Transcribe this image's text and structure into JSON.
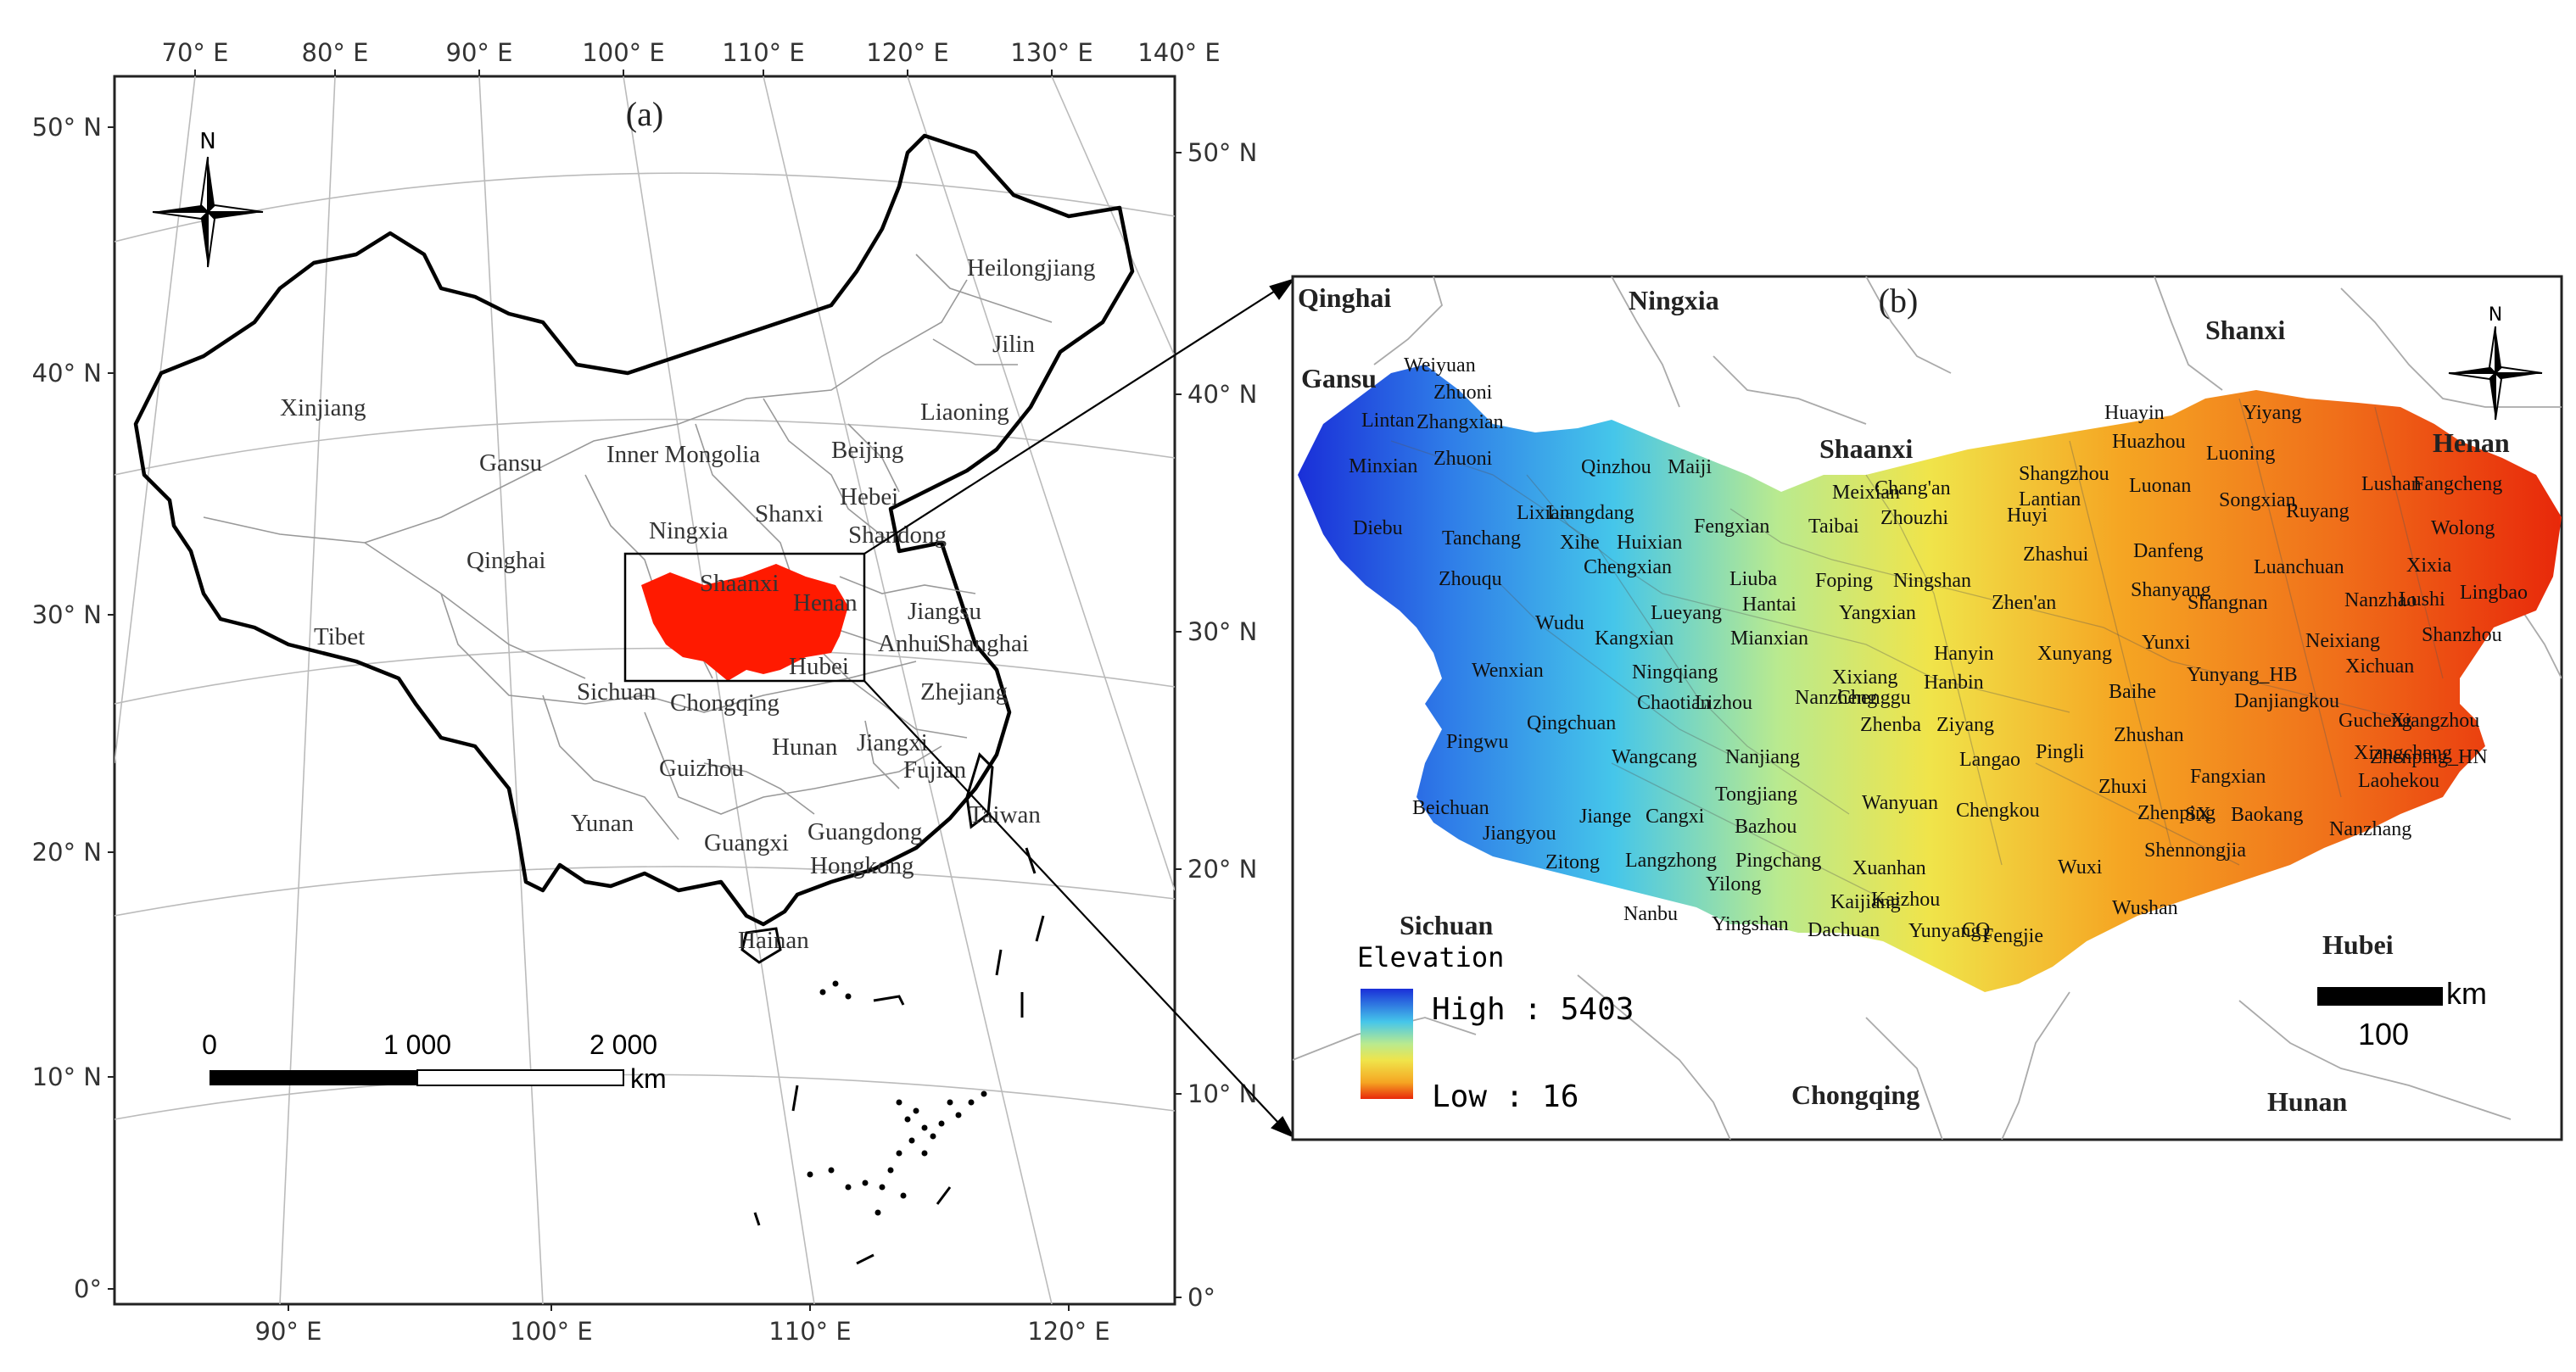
{
  "panel_a": {
    "label": "(a)",
    "top_lon_ticks": [
      "70° E",
      "80° E",
      "90° E",
      "100° E",
      "110° E",
      "120° E",
      "130° E",
      "140° E"
    ],
    "bottom_lon_ticks": [
      "90° E",
      "100° E",
      "110° E",
      "120° E"
    ],
    "left_lat_ticks": [
      "50° N",
      "40° N",
      "30° N",
      "20° N",
      "10° N",
      "0°"
    ],
    "right_lat_ticks": [
      "50° N",
      "40° N",
      "30° N",
      "20° N",
      "10° N",
      "0°"
    ],
    "north_label": "N",
    "provinces": [
      "Heilongjiang",
      "Jilin",
      "Liaoning",
      "Xinjiang",
      "Inner Mongolia",
      "Beijing",
      "Gansu",
      "Hebei",
      "Ningxia",
      "Shanxi",
      "Shandong",
      "Qinghai",
      "Shaanxi",
      "Henan",
      "Jiangsu",
      "Tibet",
      "Anhui",
      "Shanghai",
      "Hubei",
      "Sichuan",
      "Chongqing",
      "Zhejiang",
      "Hunan",
      "Jiangxi",
      "Guizhou",
      "Fujian",
      "Yunan",
      "Taiwan",
      "Guangxi",
      "Guangdong",
      "Hongkong",
      "Hainan"
    ],
    "scale": {
      "ticks": [
        "0",
        "1 000",
        "2 000"
      ],
      "unit": "km"
    }
  },
  "panel_b": {
    "label": "(b)",
    "north_label": "N",
    "neighbors": [
      "Qinghai",
      "Ningxia",
      "Shanxi",
      "Gansu",
      "Shaanxi",
      "Henan",
      "Sichuan",
      "Hubei",
      "Chongqing",
      "Hunan"
    ],
    "counties": [
      "Weiyuan",
      "Zhuoni",
      "Zhangxian",
      "Lintan",
      "Zhuoni",
      "Minxian",
      "Diebu",
      "Tanchang",
      "Zhouqu",
      "Wudu",
      "Wenxian",
      "Pingwu",
      "Beichuan",
      "Jiangyou",
      "Zitong",
      "Qinzhou",
      "Maiji",
      "Lixian",
      "Liangdang",
      "Xihe",
      "Huixian",
      "Fengxian",
      "Chengxian",
      "Kangxian",
      "Lueyang",
      "Mianxian",
      "Liuba",
      "Hantai",
      "Ningqiang",
      "Chaotian",
      "Lizhou",
      "Qingchuan",
      "Wangcang",
      "Nanjiang",
      "Tongjiang",
      "Bazhou",
      "Jiange",
      "Cangxi",
      "Langzhong",
      "Pingchang",
      "Yilong",
      "Nanbu",
      "Yingshan",
      "Meixian",
      "Taibai",
      "Chang'an",
      "Zhouzhi",
      "Huyi",
      "Foping",
      "Ningshan",
      "Yangxian",
      "Nanzheng",
      "Chenggu",
      "Xixiang",
      "Zhenba",
      "Ziyang",
      "Hanyin",
      "Hanbin",
      "Langao",
      "Pingli",
      "Xunyang",
      "Zhen'an",
      "Zhashui",
      "Shangzhou",
      "Lantian",
      "Huayin",
      "Huazhou",
      "Luonan",
      "Danfeng",
      "Shanyang",
      "Shangnan",
      "Yunxi",
      "Baihe",
      "Zhushan",
      "Zhuxi",
      "Zhenping",
      "Wanyuan",
      "Chengkou",
      "Xuanhan",
      "Kaijiang",
      "Kaizhou",
      "Dachuan",
      "Yunyang",
      "CQ",
      "Fengjie",
      "Wushan",
      "Wuxi",
      "Shennongjia",
      "SX",
      "Fangxian",
      "Baokang",
      "Nanzhang",
      "Yunyang_HB",
      "Danjiangkou",
      "Gucheng",
      "Xiangcheng",
      "Laohekou",
      "Xiangzhou",
      "Zhenping_HN",
      "Xichuan",
      "Neixiang",
      "Nanzhao",
      "Xixia",
      "Lushi",
      "Luanchuan",
      "Songxian",
      "Ruyang",
      "Lushan",
      "Fangcheng",
      "Wolong",
      "Lingbao",
      "Shanzhou",
      "Luoning",
      "Yiyang"
    ],
    "legend": {
      "title": "Elevation",
      "high": "High : 5403",
      "low": "Low : 16"
    },
    "scale": {
      "value": "100",
      "unit": "km"
    }
  },
  "colors": {
    "study_area": "#ff1a00",
    "dem_high": "#1a2fd8",
    "dem_low": "#e8280a"
  }
}
